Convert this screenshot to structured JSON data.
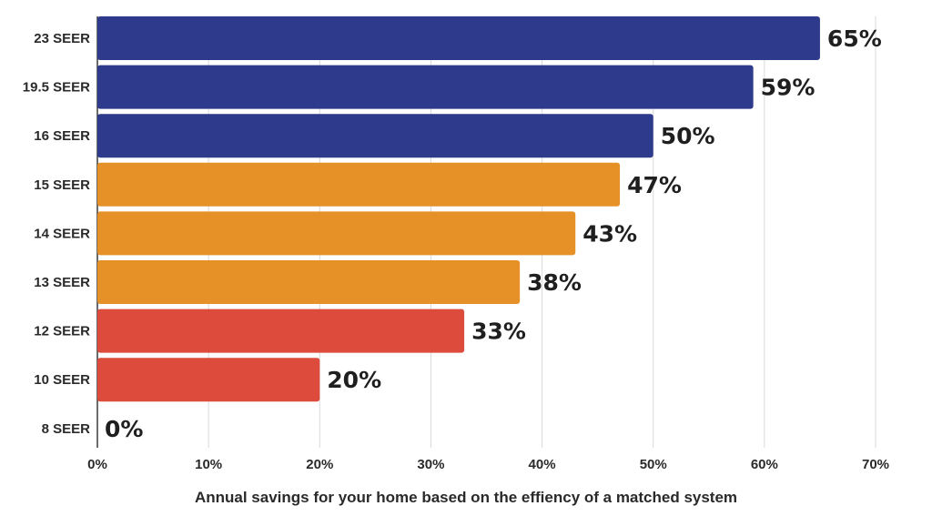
{
  "chart_data": {
    "type": "bar",
    "orientation": "horizontal",
    "title": "",
    "xlabel": "Annual savings for your home based on the effiency of a matched system",
    "ylabel": "",
    "categories": [
      "23 SEER",
      "19.5 SEER",
      "16 SEER",
      "15 SEER",
      "14 SEER",
      "13 SEER",
      "12 SEER",
      "10 SEER",
      "8 SEER"
    ],
    "values": [
      65,
      59,
      50,
      47,
      43,
      38,
      33,
      20,
      0
    ],
    "value_labels": [
      "65%",
      "59%",
      "50%",
      "47%",
      "43%",
      "38%",
      "33%",
      "20%",
      "0%"
    ],
    "bar_colors": [
      "#2e3a8c",
      "#2e3a8c",
      "#2e3a8c",
      "#e69128",
      "#e69128",
      "#e69128",
      "#dc4b3c",
      "#dc4b3c",
      "#dc4b3c"
    ],
    "xlim": [
      0,
      70
    ],
    "xticks": [
      0,
      10,
      20,
      30,
      40,
      50,
      60,
      70
    ],
    "xtick_labels": [
      "0%",
      "10%",
      "20%",
      "30%",
      "40%",
      "50%",
      "60%",
      "70%"
    ],
    "grid": "vertical",
    "legend": "none"
  },
  "colors": {
    "grid": "#d9d9d9",
    "axis": "#3a3a3a",
    "text": "#2a2a2a"
  }
}
